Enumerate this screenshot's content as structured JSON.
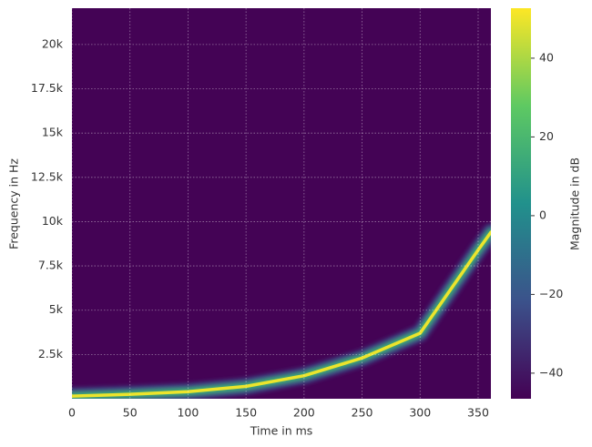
{
  "chart_data": {
    "type": "spectrogram",
    "xlabel": "Time in ms",
    "ylabel": "Frequency in Hz",
    "colorbar_label": "Magnitude in dB",
    "xlim": [
      0,
      361
    ],
    "xticks": [
      0,
      50,
      100,
      150,
      200,
      250,
      300,
      350
    ],
    "ylim": [
      0,
      22050
    ],
    "yticks": [
      {
        "value": 2500,
        "label": "2.5k"
      },
      {
        "value": 5000,
        "label": "5k"
      },
      {
        "value": 7500,
        "label": "7.5k"
      },
      {
        "value": 10000,
        "label": "10k"
      },
      {
        "value": 12500,
        "label": "12.5k"
      },
      {
        "value": 15000,
        "label": "15k"
      },
      {
        "value": 17500,
        "label": "17.5k"
      },
      {
        "value": 20000,
        "label": "20k"
      }
    ],
    "clim": [
      -46.5,
      52.7
    ],
    "cticks": [
      {
        "value": -40,
        "label": "−40"
      },
      {
        "value": -20,
        "label": "−20"
      },
      {
        "value": 0,
        "label": "0"
      },
      {
        "value": 20,
        "label": "20"
      },
      {
        "value": 40,
        "label": "40"
      }
    ],
    "colormap": "viridis",
    "grid": true,
    "background_db": -46,
    "ridge": {
      "x": [
        0,
        50,
        100,
        150,
        200,
        250,
        300,
        350,
        361
      ],
      "frequency": [
        150,
        250,
        400,
        700,
        1300,
        2300,
        3700,
        8400,
        9400
      ],
      "db": 50
    }
  }
}
